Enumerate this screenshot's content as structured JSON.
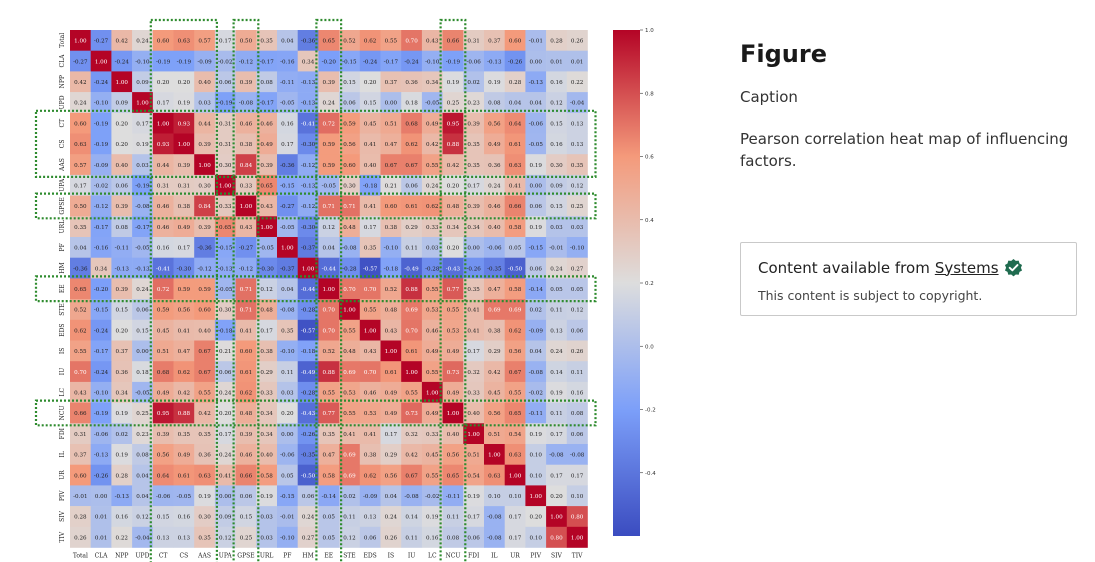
{
  "figure": {
    "heading": "Figure",
    "caption_label": "Caption",
    "caption_text": "Pearson correlation heat map of influencing factors."
  },
  "content_box": {
    "prefix": "Content available from",
    "link_text": "Systems",
    "badge_icon": "verified-check-icon",
    "notice": "This content is subject to copyright."
  },
  "chart_data": {
    "type": "heatmap",
    "title": "",
    "labels": [
      "Total",
      "CLA",
      "NPP",
      "UPD",
      "CT",
      "CS",
      "AAS",
      "UPA",
      "GPSE",
      "URL",
      "PF",
      "HM",
      "EE",
      "STE",
      "EDS",
      "IS",
      "IU",
      "LC",
      "NCU",
      "FDI",
      "IL",
      "UR",
      "PIV",
      "SIV",
      "TIV"
    ],
    "colorbar": {
      "min": -0.6,
      "max": 1.0,
      "ticks": [
        "1.0",
        "0.8",
        "0.6",
        "0.4",
        "0.2",
        "0.0",
        "-0.2",
        "-0.4"
      ],
      "tick_values": [
        1.0,
        0.8,
        0.6,
        0.4,
        0.2,
        0.0,
        -0.2,
        -0.4
      ],
      "colormap": "coolwarm"
    },
    "highlight_rows": [
      "CT",
      "CS",
      "AAS",
      "GPSE",
      "EE",
      "NCU"
    ],
    "highlight_cols": [
      "CT",
      "CS",
      "AAS",
      "GPSE",
      "EE",
      "NCU"
    ],
    "matrix": [
      [
        1.0,
        -0.27,
        0.42,
        0.24,
        0.6,
        0.63,
        0.57,
        0.17,
        0.5,
        0.35,
        0.04,
        -0.36,
        0.65,
        0.52,
        0.62,
        0.55,
        0.7,
        0.43,
        0.66,
        0.31,
        0.37,
        0.6,
        -0.01,
        0.28,
        0.26
      ],
      [
        -0.27,
        1.0,
        -0.24,
        -0.1,
        -0.19,
        -0.19,
        -0.09,
        -0.02,
        -0.12,
        -0.17,
        -0.16,
        0.34,
        -0.2,
        -0.15,
        -0.24,
        -0.17,
        -0.24,
        -0.1,
        -0.19,
        -0.06,
        -0.13,
        -0.26,
        -0.0,
        0.01,
        0.01
      ],
      [
        0.42,
        -0.24,
        1.0,
        0.09,
        0.2,
        0.2,
        0.4,
        0.06,
        0.39,
        0.08,
        -0.11,
        -0.13,
        0.39,
        0.15,
        0.2,
        0.37,
        0.36,
        0.34,
        0.19,
        0.02,
        0.19,
        0.28,
        -0.13,
        0.16,
        0.22
      ],
      [
        0.24,
        -0.1,
        0.09,
        1.0,
        0.17,
        0.19,
        0.03,
        -0.19,
        -0.08,
        -0.17,
        -0.05,
        -0.13,
        0.24,
        0.06,
        0.15,
        0.0,
        0.18,
        -0.05,
        0.25,
        0.23,
        0.08,
        0.04,
        0.04,
        0.12,
        -0.04
      ],
      [
        0.6,
        -0.19,
        0.2,
        0.17,
        1.0,
        0.93,
        0.44,
        0.31,
        0.46,
        0.46,
        0.16,
        -0.41,
        0.72,
        0.59,
        0.45,
        0.51,
        0.68,
        0.49,
        0.95,
        0.39,
        0.56,
        0.64,
        -0.06,
        0.15,
        0.13
      ],
      [
        0.63,
        -0.19,
        0.2,
        0.19,
        0.93,
        1.0,
        0.39,
        0.31,
        0.38,
        0.49,
        0.17,
        -0.3,
        0.59,
        0.56,
        0.41,
        0.47,
        0.62,
        0.42,
        0.88,
        0.35,
        0.49,
        0.61,
        -0.05,
        0.16,
        0.13
      ],
      [
        0.57,
        -0.09,
        0.4,
        0.03,
        0.44,
        0.39,
        1.0,
        0.3,
        0.84,
        0.39,
        -0.36,
        -0.12,
        0.59,
        0.6,
        0.4,
        0.67,
        0.67,
        0.55,
        0.42,
        0.35,
        0.36,
        0.63,
        0.19,
        0.3,
        0.35
      ],
      [
        0.17,
        -0.02,
        0.06,
        -0.19,
        0.31,
        0.31,
        0.3,
        1.0,
        0.33,
        0.65,
        -0.15,
        -0.13,
        -0.05,
        0.3,
        -0.18,
        0.21,
        0.06,
        0.24,
        0.2,
        0.17,
        0.24,
        0.41,
        0.0,
        0.09,
        0.12
      ],
      [
        0.5,
        -0.12,
        0.39,
        -0.08,
        0.46,
        0.38,
        0.84,
        0.33,
        1.0,
        0.43,
        -0.27,
        -0.12,
        0.71,
        0.71,
        0.41,
        0.6,
        0.61,
        0.62,
        0.48,
        0.39,
        0.46,
        0.66,
        0.06,
        0.15,
        0.25
      ],
      [
        0.35,
        -0.17,
        0.08,
        -0.17,
        0.46,
        0.49,
        0.39,
        0.65,
        0.43,
        1.0,
        -0.05,
        -0.3,
        0.12,
        0.48,
        0.17,
        0.38,
        0.29,
        0.33,
        0.34,
        0.34,
        0.4,
        0.58,
        0.19,
        0.03,
        0.03
      ],
      [
        0.04,
        -0.16,
        -0.11,
        -0.05,
        0.16,
        0.17,
        -0.36,
        -0.15,
        -0.27,
        -0.05,
        1.0,
        -0.37,
        0.04,
        -0.08,
        0.35,
        -0.1,
        0.11,
        0.03,
        0.2,
        0.0,
        -0.06,
        0.05,
        -0.15,
        -0.01,
        -0.1
      ],
      [
        -0.36,
        0.34,
        -0.13,
        -0.13,
        -0.41,
        -0.3,
        -0.12,
        -0.13,
        -0.12,
        -0.3,
        -0.37,
        1.0,
        -0.44,
        -0.28,
        -0.57,
        -0.18,
        -0.49,
        -0.28,
        -0.43,
        -0.26,
        -0.35,
        -0.5,
        0.06,
        0.24,
        0.27
      ],
      [
        0.65,
        -0.2,
        0.39,
        0.24,
        0.72,
        0.59,
        0.59,
        -0.05,
        0.71,
        0.12,
        0.04,
        -0.44,
        1.0,
        0.7,
        0.7,
        0.52,
        0.88,
        0.55,
        0.77,
        0.35,
        0.47,
        0.58,
        -0.14,
        0.05,
        0.05
      ],
      [
        0.52,
        -0.15,
        0.15,
        0.06,
        0.59,
        0.56,
        0.6,
        0.3,
        0.71,
        0.48,
        -0.08,
        -0.28,
        0.7,
        1.0,
        0.55,
        0.48,
        0.69,
        0.53,
        0.55,
        0.41,
        0.69,
        0.69,
        0.02,
        0.11,
        0.12
      ],
      [
        0.62,
        -0.24,
        0.2,
        0.15,
        0.45,
        0.41,
        0.4,
        -0.18,
        0.41,
        0.17,
        0.35,
        -0.57,
        0.7,
        0.55,
        1.0,
        0.43,
        0.7,
        0.46,
        0.53,
        0.41,
        0.38,
        0.62,
        -0.09,
        0.13,
        0.06
      ],
      [
        0.55,
        -0.17,
        0.37,
        0.0,
        0.51,
        0.47,
        0.67,
        0.21,
        0.6,
        0.38,
        -0.1,
        -0.18,
        0.52,
        0.48,
        0.43,
        1.0,
        0.61,
        0.49,
        0.49,
        0.17,
        0.29,
        0.56,
        0.04,
        0.24,
        0.26
      ],
      [
        0.7,
        -0.24,
        0.36,
        0.18,
        0.68,
        0.62,
        0.67,
        0.06,
        0.61,
        0.29,
        0.11,
        -0.49,
        0.88,
        0.69,
        0.7,
        0.61,
        1.0,
        0.55,
        0.73,
        0.32,
        0.42,
        0.67,
        -0.08,
        0.14,
        0.11
      ],
      [
        0.43,
        -0.1,
        0.34,
        -0.05,
        0.49,
        0.42,
        0.55,
        0.24,
        0.62,
        0.33,
        0.03,
        -0.28,
        0.55,
        0.53,
        0.46,
        0.49,
        0.55,
        1.0,
        0.49,
        0.33,
        0.45,
        0.55,
        -0.02,
        0.19,
        0.16
      ],
      [
        0.66,
        -0.19,
        0.19,
        0.25,
        0.95,
        0.88,
        0.42,
        0.2,
        0.48,
        0.34,
        0.2,
        -0.43,
        0.77,
        0.55,
        0.53,
        0.49,
        0.73,
        0.49,
        1.0,
        0.4,
        0.56,
        0.65,
        -0.11,
        0.11,
        0.08
      ],
      [
        0.31,
        -0.06,
        0.02,
        0.23,
        0.39,
        0.35,
        0.35,
        0.17,
        0.39,
        0.34,
        0.0,
        -0.26,
        0.35,
        0.41,
        0.41,
        0.17,
        0.32,
        0.33,
        0.4,
        1.0,
        0.51,
        0.54,
        0.19,
        0.17,
        0.06
      ],
      [
        0.37,
        -0.13,
        0.19,
        0.08,
        0.56,
        0.49,
        0.36,
        0.24,
        0.46,
        0.4,
        -0.06,
        -0.35,
        0.47,
        0.69,
        0.38,
        0.29,
        0.42,
        0.45,
        0.56,
        0.51,
        1.0,
        0.63,
        0.1,
        -0.08,
        -0.08
      ],
      [
        0.6,
        -0.26,
        0.28,
        0.04,
        0.64,
        0.61,
        0.63,
        0.41,
        0.66,
        0.58,
        0.05,
        -0.5,
        0.58,
        0.69,
        0.62,
        0.56,
        0.67,
        0.55,
        0.65,
        0.54,
        0.63,
        1.0,
        0.1,
        0.17,
        0.17
      ],
      [
        -0.01,
        -0.0,
        -0.13,
        0.04,
        -0.06,
        -0.05,
        0.19,
        0.0,
        0.06,
        0.19,
        -0.15,
        0.06,
        -0.14,
        0.02,
        -0.09,
        0.04,
        -0.08,
        -0.02,
        -0.11,
        0.19,
        0.1,
        0.1,
        1.0,
        0.2,
        0.1
      ],
      [
        0.28,
        0.01,
        0.16,
        0.12,
        0.15,
        0.16,
        0.3,
        0.09,
        0.15,
        0.03,
        -0.01,
        0.24,
        0.05,
        0.11,
        0.13,
        0.24,
        0.14,
        0.19,
        0.11,
        0.17,
        -0.08,
        0.17,
        0.2,
        1.0,
        0.8
      ],
      [
        0.26,
        0.01,
        0.22,
        -0.04,
        0.13,
        0.13,
        0.35,
        0.12,
        0.25,
        0.03,
        -0.1,
        0.27,
        0.05,
        0.12,
        0.06,
        0.26,
        0.11,
        0.16,
        0.08,
        0.06,
        -0.08,
        0.17,
        0.1,
        0.8,
        1.0
      ]
    ]
  }
}
